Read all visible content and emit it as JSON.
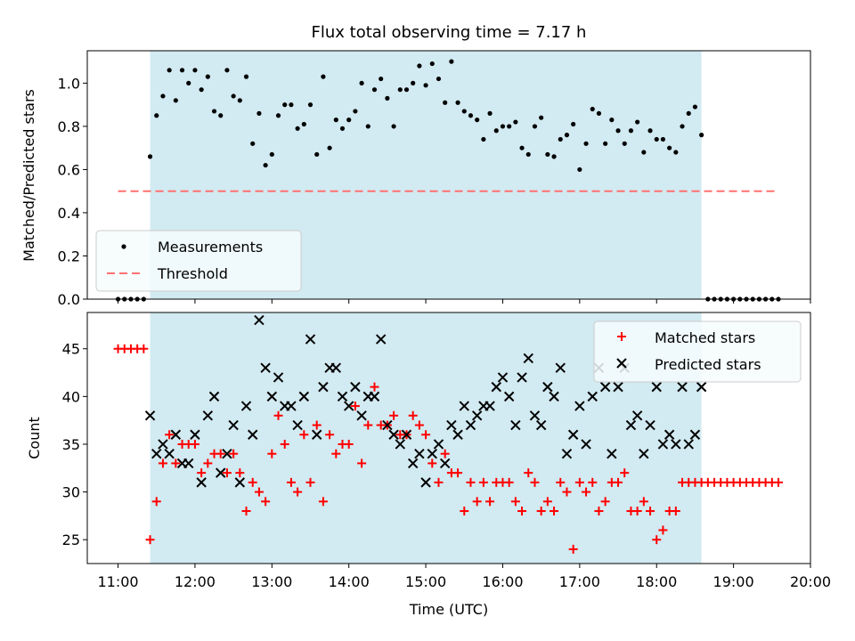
{
  "chart_data": [
    {
      "type": "scatter",
      "title": "Flux total observing time = 7.17 h",
      "xlabel": "",
      "ylabel": "Matched/Predicted stars",
      "xlim": [
        "10:36",
        "20:00"
      ],
      "ylim": [
        0,
        1.15
      ],
      "yticks": [
        0.0,
        0.2,
        0.4,
        0.6,
        0.8,
        1.0
      ],
      "ytick_labels": [
        "0.0",
        "0.2",
        "0.4",
        "0.6",
        "0.8",
        "1.0"
      ],
      "shaded_span": [
        "11:25",
        "18:35"
      ],
      "shade_color": "#add8e6",
      "legend_position": "lower-left",
      "series": [
        {
          "name": "Measurements",
          "kind": "points",
          "color": "#000000",
          "x": [
            "11:00",
            "11:05",
            "11:10",
            "11:15",
            "11:20",
            "11:25",
            "11:30",
            "11:35",
            "11:40",
            "11:45",
            "11:50",
            "11:55",
            "12:00",
            "12:05",
            "12:10",
            "12:15",
            "12:20",
            "12:25",
            "12:30",
            "12:35",
            "12:40",
            "12:45",
            "12:50",
            "12:55",
            "13:00",
            "13:05",
            "13:10",
            "13:15",
            "13:20",
            "13:25",
            "13:30",
            "13:35",
            "13:40",
            "13:45",
            "13:50",
            "13:55",
            "14:00",
            "14:05",
            "14:10",
            "14:15",
            "14:20",
            "14:25",
            "14:30",
            "14:35",
            "14:40",
            "14:45",
            "14:50",
            "14:55",
            "15:00",
            "15:05",
            "15:10",
            "15:15",
            "15:20",
            "15:25",
            "15:30",
            "15:35",
            "15:40",
            "15:45",
            "15:50",
            "15:55",
            "16:00",
            "16:05",
            "16:10",
            "16:15",
            "16:20",
            "16:25",
            "16:30",
            "16:35",
            "16:40",
            "16:45",
            "16:50",
            "16:55",
            "17:00",
            "17:05",
            "17:10",
            "17:15",
            "17:20",
            "17:25",
            "17:30",
            "17:35",
            "17:40",
            "17:45",
            "17:50",
            "17:55",
            "18:00",
            "18:05",
            "18:10",
            "18:15",
            "18:20",
            "18:25",
            "18:30",
            "18:35",
            "18:40",
            "18:45",
            "18:50",
            "18:55",
            "19:00",
            "19:05",
            "19:10",
            "19:15",
            "19:20",
            "19:25",
            "19:30",
            "19:35"
          ],
          "y": [
            0,
            0,
            0,
            0,
            0,
            0.66,
            0.85,
            0.94,
            1.06,
            0.92,
            1.06,
            1.0,
            1.06,
            0.97,
            1.03,
            0.87,
            0.85,
            1.06,
            0.94,
            0.92,
            1.03,
            0.72,
            0.86,
            0.62,
            0.67,
            0.85,
            0.9,
            0.9,
            0.79,
            0.81,
            0.9,
            0.67,
            1.03,
            0.7,
            0.83,
            0.79,
            0.83,
            0.87,
            1.0,
            0.8,
            0.97,
            1.02,
            0.93,
            0.8,
            0.97,
            0.97,
            1.0,
            1.08,
            0.99,
            1.09,
            1.02,
            0.91,
            1.1,
            0.91,
            0.87,
            0.85,
            0.83,
            0.74,
            0.86,
            0.78,
            0.8,
            0.8,
            0.82,
            0.7,
            0.67,
            0.8,
            0.84,
            0.67,
            0.66,
            0.74,
            0.76,
            0.81,
            0.6,
            0.72,
            0.88,
            0.86,
            0.72,
            0.83,
            0.78,
            0.72,
            0.78,
            0.82,
            0.68,
            0.78,
            0.74,
            0.74,
            0.7,
            0.68,
            0.8,
            0.86,
            0.89,
            0.76,
            0,
            0,
            0,
            0,
            0,
            0,
            0,
            0,
            0,
            0,
            0,
            0
          ]
        },
        {
          "name": "Threshold",
          "kind": "dashed-line",
          "color": "#ff7070",
          "x": [
            "11:00",
            "19:35"
          ],
          "y": [
            0.5,
            0.5
          ]
        }
      ]
    },
    {
      "type": "scatter",
      "title": "",
      "xlabel": "Time (UTC)",
      "ylabel": "Count",
      "xlim": [
        "10:36",
        "20:00"
      ],
      "ylim": [
        22.5,
        48.8
      ],
      "yticks": [
        25,
        30,
        35,
        40,
        45
      ],
      "ytick_labels": [
        "25",
        "30",
        "35",
        "40",
        "45"
      ],
      "xticks": [
        "11:00",
        "12:00",
        "13:00",
        "14:00",
        "15:00",
        "16:00",
        "17:00",
        "18:00",
        "19:00",
        "20:00"
      ],
      "xtick_labels": [
        "11:00",
        "12:00",
        "13:00",
        "14:00",
        "15:00",
        "16:00",
        "17:00",
        "18:00",
        "19:00",
        "20:00"
      ],
      "shaded_span": [
        "11:25",
        "18:35"
      ],
      "shade_color": "#add8e6",
      "legend_position": "top-right",
      "series": [
        {
          "name": "Matched stars",
          "kind": "plus",
          "color": "#ff0000",
          "x": [
            "11:00",
            "11:05",
            "11:10",
            "11:15",
            "11:20",
            "11:25",
            "11:30",
            "11:35",
            "11:40",
            "11:45",
            "11:50",
            "11:55",
            "12:00",
            "12:05",
            "12:10",
            "12:15",
            "12:20",
            "12:25",
            "12:30",
            "12:35",
            "12:40",
            "12:45",
            "12:50",
            "12:55",
            "13:00",
            "13:05",
            "13:10",
            "13:15",
            "13:20",
            "13:25",
            "13:30",
            "13:35",
            "13:40",
            "13:45",
            "13:50",
            "13:55",
            "14:00",
            "14:05",
            "14:10",
            "14:15",
            "14:20",
            "14:25",
            "14:30",
            "14:35",
            "14:40",
            "14:45",
            "14:50",
            "14:55",
            "15:00",
            "15:05",
            "15:10",
            "15:15",
            "15:20",
            "15:25",
            "15:30",
            "15:35",
            "15:40",
            "15:45",
            "15:50",
            "15:55",
            "16:00",
            "16:05",
            "16:10",
            "16:15",
            "16:20",
            "16:25",
            "16:30",
            "16:35",
            "16:40",
            "16:45",
            "16:50",
            "16:55",
            "17:00",
            "17:05",
            "17:10",
            "17:15",
            "17:20",
            "17:25",
            "17:30",
            "17:35",
            "17:40",
            "17:45",
            "17:50",
            "17:55",
            "18:00",
            "18:05",
            "18:10",
            "18:15",
            "18:20",
            "18:25",
            "18:30",
            "18:35",
            "18:40",
            "18:45",
            "18:50",
            "18:55",
            "19:00",
            "19:05",
            "19:10",
            "19:15",
            "19:20",
            "19:25",
            "19:30",
            "19:35"
          ],
          "y": [
            45,
            45,
            45,
            45,
            45,
            25,
            29,
            33,
            36,
            33,
            35,
            35,
            35,
            32,
            33,
            34,
            34,
            32,
            34,
            32,
            28,
            31,
            30,
            29,
            34,
            38,
            35,
            31,
            30,
            36,
            31,
            37,
            29,
            36,
            34,
            35,
            35,
            39,
            33,
            37,
            41,
            37,
            37,
            38,
            36,
            36,
            38,
            37,
            36,
            33,
            31,
            34,
            32,
            32,
            28,
            31,
            29,
            31,
            29,
            31,
            31,
            31,
            29,
            28,
            32,
            31,
            28,
            29,
            28,
            31,
            30,
            24,
            31,
            30,
            31,
            28,
            29,
            31,
            31,
            32,
            28,
            28,
            29,
            28,
            25,
            26,
            28,
            28,
            31,
            31,
            31,
            31,
            31,
            31,
            31,
            31,
            31,
            31,
            31,
            31,
            31,
            31,
            31,
            31
          ]
        },
        {
          "name": "Predicted stars",
          "kind": "cross",
          "color": "#000000",
          "x": [
            "11:25",
            "11:30",
            "11:35",
            "11:40",
            "11:45",
            "11:50",
            "11:55",
            "12:00",
            "12:05",
            "12:10",
            "12:15",
            "12:20",
            "12:25",
            "12:30",
            "12:35",
            "12:40",
            "12:45",
            "12:50",
            "12:55",
            "13:00",
            "13:05",
            "13:10",
            "13:15",
            "13:20",
            "13:25",
            "13:30",
            "13:35",
            "13:40",
            "13:45",
            "13:50",
            "13:55",
            "14:00",
            "14:05",
            "14:10",
            "14:15",
            "14:20",
            "14:25",
            "14:30",
            "14:35",
            "14:40",
            "14:45",
            "14:50",
            "14:55",
            "15:00",
            "15:05",
            "15:10",
            "15:15",
            "15:20",
            "15:25",
            "15:30",
            "15:35",
            "15:40",
            "15:45",
            "15:50",
            "15:55",
            "16:00",
            "16:05",
            "16:10",
            "16:15",
            "16:20",
            "16:25",
            "16:30",
            "16:35",
            "16:40",
            "16:45",
            "16:50",
            "16:55",
            "17:00",
            "17:05",
            "17:10",
            "17:15",
            "17:20",
            "17:25",
            "17:30",
            "17:35",
            "17:40",
            "17:45",
            "17:50",
            "17:55",
            "18:00",
            "18:05",
            "18:10",
            "18:15",
            "18:20",
            "18:25",
            "18:30",
            "18:35"
          ],
          "y": [
            38,
            34,
            35,
            34,
            36,
            33,
            33,
            36,
            31,
            38,
            40,
            32,
            34,
            37,
            31,
            39,
            36,
            48,
            43,
            40,
            42,
            39,
            39,
            37,
            40,
            46,
            36,
            41,
            43,
            43,
            40,
            39,
            41,
            38,
            40,
            40,
            46,
            37,
            36,
            35,
            36,
            33,
            34,
            31,
            34,
            35,
            33,
            37,
            36,
            39,
            37,
            38,
            39,
            39,
            41,
            42,
            40,
            37,
            42,
            44,
            38,
            37,
            41,
            40,
            43,
            34,
            36,
            39,
            35,
            40,
            43,
            41,
            34,
            41,
            43,
            37,
            38,
            34,
            37,
            41,
            35,
            36,
            35,
            41,
            35,
            36,
            41
          ]
        }
      ]
    }
  ]
}
